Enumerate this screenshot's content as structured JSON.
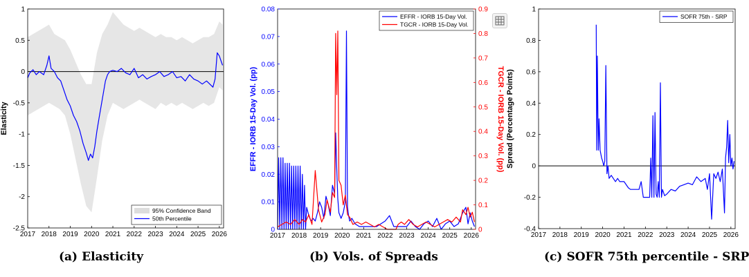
{
  "captions": [
    {
      "label": "(a)",
      "text": "Elasticity"
    },
    {
      "label": "(b)",
      "text": "Vols. of Spreads"
    },
    {
      "label": "(c)",
      "text": "SOFR 75th percentile - SRP"
    }
  ],
  "chart_data": [
    {
      "type": "line",
      "title": "",
      "xlabel": "",
      "ylabel": "Elasticity",
      "xlim": [
        2017,
        2026.2
      ],
      "ylim": [
        -2.5,
        1
      ],
      "xticks": [
        2017,
        2018,
        2019,
        2020,
        2021,
        2022,
        2023,
        2024,
        2025,
        2026
      ],
      "yticks": [
        -2.5,
        -2,
        -1.5,
        -1,
        -0.5,
        0,
        0.5,
        1
      ],
      "ytick_labels": [
        "-2.5",
        "-2",
        "-1.5",
        "-1",
        "-0.5",
        "0",
        "0.5",
        "1"
      ],
      "legend_position": "bottom-right",
      "band": {
        "name": "95% Confidence Band",
        "color": "#e6e6e6",
        "x": [
          2017.0,
          2017.25,
          2017.5,
          2017.75,
          2018.0,
          2018.25,
          2018.5,
          2018.75,
          2019.0,
          2019.25,
          2019.5,
          2019.75,
          2020.0,
          2020.25,
          2020.5,
          2020.75,
          2021.0,
          2021.25,
          2021.5,
          2021.75,
          2022.0,
          2022.25,
          2022.5,
          2022.75,
          2023.0,
          2023.25,
          2023.5,
          2023.75,
          2024.0,
          2024.25,
          2024.5,
          2024.75,
          2025.0,
          2025.25,
          2025.5,
          2025.75,
          2026.0,
          2026.15
        ],
        "upper": [
          0.55,
          0.6,
          0.65,
          0.7,
          0.75,
          0.6,
          0.55,
          0.5,
          0.35,
          0.15,
          -0.05,
          -0.2,
          -0.2,
          0.3,
          0.6,
          0.75,
          0.95,
          0.85,
          0.75,
          0.7,
          0.65,
          0.7,
          0.65,
          0.6,
          0.55,
          0.6,
          0.55,
          0.55,
          0.5,
          0.55,
          0.5,
          0.45,
          0.5,
          0.55,
          0.55,
          0.6,
          0.8,
          0.75
        ],
        "lower": [
          -0.7,
          -0.65,
          -0.6,
          -0.55,
          -0.5,
          -0.55,
          -0.6,
          -0.7,
          -1.0,
          -1.4,
          -1.8,
          -2.15,
          -2.25,
          -1.7,
          -1.1,
          -0.7,
          -0.5,
          -0.55,
          -0.6,
          -0.55,
          -0.5,
          -0.45,
          -0.5,
          -0.55,
          -0.6,
          -0.5,
          -0.55,
          -0.5,
          -0.55,
          -0.5,
          -0.55,
          -0.6,
          -0.55,
          -0.5,
          -0.55,
          -0.5,
          -0.25,
          -0.3
        ]
      },
      "series": [
        {
          "name": "50th Percentile",
          "color": "#0000ff",
          "x": [
            2017.0,
            2017.1,
            2017.25,
            2017.4,
            2017.55,
            2017.75,
            2017.9,
            2018.0,
            2018.1,
            2018.25,
            2018.4,
            2018.55,
            2018.7,
            2018.85,
            2019.0,
            2019.15,
            2019.3,
            2019.45,
            2019.6,
            2019.75,
            2019.85,
            2019.95,
            2020.05,
            2020.15,
            2020.25,
            2020.35,
            2020.45,
            2020.55,
            2020.65,
            2020.75,
            2020.85,
            2021.0,
            2021.2,
            2021.4,
            2021.6,
            2021.8,
            2022.0,
            2022.2,
            2022.4,
            2022.6,
            2022.8,
            2023.0,
            2023.2,
            2023.4,
            2023.6,
            2023.8,
            2024.0,
            2024.2,
            2024.4,
            2024.6,
            2024.8,
            2025.0,
            2025.2,
            2025.4,
            2025.55,
            2025.7,
            2025.8,
            2025.9,
            2026.0,
            2026.15
          ],
          "values": [
            -0.1,
            -0.02,
            0.03,
            -0.05,
            0.0,
            -0.05,
            0.1,
            0.25,
            0.05,
            0.0,
            -0.1,
            -0.15,
            -0.3,
            -0.45,
            -0.55,
            -0.7,
            -0.8,
            -0.95,
            -1.15,
            -1.3,
            -1.42,
            -1.32,
            -1.38,
            -1.2,
            -0.95,
            -0.75,
            -0.55,
            -0.35,
            -0.15,
            -0.05,
            0.0,
            0.02,
            0.0,
            0.05,
            -0.02,
            -0.05,
            0.05,
            -0.1,
            -0.05,
            -0.12,
            -0.08,
            -0.05,
            0.0,
            -0.08,
            -0.05,
            0.0,
            -0.1,
            -0.08,
            -0.15,
            -0.05,
            -0.12,
            -0.15,
            -0.2,
            -0.15,
            -0.2,
            -0.25,
            -0.12,
            0.3,
            0.25,
            0.1
          ]
        }
      ],
      "hline": 0
    },
    {
      "type": "line",
      "title": "",
      "xlabel": "",
      "ylabel": "EFFR - IORB 15-Day Vol. (pp)",
      "ylabel_right": "TGCR - IORB 15-Day Vol. (pp)",
      "xlim": [
        2017,
        2026.2
      ],
      "ylim": [
        0,
        0.08
      ],
      "ylim_right": [
        0,
        0.9
      ],
      "xticks": [
        2017,
        2018,
        2019,
        2020,
        2021,
        2022,
        2023,
        2024,
        2025,
        2026
      ],
      "yticks": [
        0,
        0.01,
        0.02,
        0.03,
        0.04,
        0.05,
        0.06,
        0.07,
        0.08
      ],
      "ytick_labels": [
        "0",
        "0.01",
        "0.02",
        "0.03",
        "0.04",
        "0.05",
        "0.06",
        "0.07",
        "0.08"
      ],
      "yticks_right": [
        0,
        0.1,
        0.2,
        0.3,
        0.4,
        0.5,
        0.6,
        0.7,
        0.8,
        0.9
      ],
      "ytick_labels_right": [
        "0",
        "0.1",
        "0.2",
        "0.3",
        "0.4",
        "0.5",
        "0.6",
        "0.7",
        "0.8",
        "0.9"
      ],
      "legend_position": "top-right",
      "series": [
        {
          "name": "EFFR - IORB 15-Day Vol.",
          "color": "#0000ff",
          "axis": "left",
          "x": [
            2017.0,
            2017.05,
            2017.1,
            2017.15,
            2017.2,
            2017.25,
            2017.3,
            2017.35,
            2017.4,
            2017.45,
            2017.5,
            2017.55,
            2017.6,
            2017.65,
            2017.7,
            2017.75,
            2017.8,
            2017.85,
            2017.9,
            2017.95,
            2018.0,
            2018.05,
            2018.1,
            2018.15,
            2018.2,
            2018.25,
            2018.3,
            2018.35,
            2018.45,
            2018.55,
            2018.65,
            2018.75,
            2018.85,
            2018.95,
            2019.05,
            2019.15,
            2019.25,
            2019.35,
            2019.45,
            2019.55,
            2019.65,
            2019.7,
            2019.75,
            2019.8,
            2019.85,
            2019.95,
            2020.05,
            2020.15,
            2020.2,
            2020.25,
            2020.3,
            2020.35,
            2020.45,
            2020.6,
            2020.8,
            2021.0,
            2021.2,
            2021.4,
            2021.6,
            2021.8,
            2022.0,
            2022.2,
            2022.4,
            2022.6,
            2022.8,
            2023.0,
            2023.2,
            2023.4,
            2023.6,
            2023.8,
            2024.0,
            2024.2,
            2024.4,
            2024.6,
            2024.8,
            2025.0,
            2025.2,
            2025.4,
            2025.6,
            2025.75,
            2025.85,
            2025.95,
            2026.05,
            2026.15
          ],
          "values": [
            0,
            0.026,
            0,
            0.026,
            0,
            0.026,
            0,
            0.024,
            0,
            0.024,
            0,
            0.024,
            0,
            0.023,
            0,
            0.023,
            0,
            0.023,
            0,
            0.023,
            0,
            0.023,
            0,
            0.02,
            0,
            0.016,
            0,
            0.008,
            0.005,
            0.003,
            0.004,
            0.003,
            0.006,
            0.01,
            0.008,
            0.004,
            0.012,
            0.009,
            0.005,
            0.016,
            0.013,
            0.035,
            0.022,
            0.011,
            0.006,
            0.004,
            0.006,
            0.01,
            0.072,
            0.008,
            0.005,
            0.003,
            0.004,
            0.002,
            0.001,
            0.001,
            0.001,
            0.001,
            0.001,
            0.002,
            0.003,
            0.005,
            0.001,
            0.001,
            0.001,
            0.001,
            0.003,
            0.001,
            0.0,
            0.002,
            0.003,
            0.001,
            0.004,
            0.0,
            0.002,
            0.003,
            0.001,
            0.002,
            0.006,
            0.008,
            0.002,
            0.006,
            0.003,
            0.001
          ]
        },
        {
          "name": "TGCR - IORB 15-Day Vol.",
          "color": "#ff0000",
          "axis": "right",
          "x": [
            2017.0,
            2017.2,
            2017.4,
            2017.6,
            2017.8,
            2018.0,
            2018.15,
            2018.3,
            2018.45,
            2018.6,
            2018.75,
            2018.9,
            2019.05,
            2019.2,
            2019.3,
            2019.45,
            2019.55,
            2019.65,
            2019.7,
            2019.75,
            2019.8,
            2019.85,
            2019.95,
            2020.05,
            2020.15,
            2020.25,
            2020.35,
            2020.5,
            2020.7,
            2020.9,
            2021.1,
            2021.3,
            2021.5,
            2021.7,
            2021.9,
            2022.1,
            2022.3,
            2022.5,
            2022.6,
            2022.75,
            2022.9,
            2023.1,
            2023.3,
            2023.5,
            2023.7,
            2023.9,
            2024.1,
            2024.3,
            2024.5,
            2024.7,
            2024.9,
            2025.1,
            2025.3,
            2025.5,
            2025.6,
            2025.75,
            2025.85,
            2025.95,
            2026.05,
            2026.15
          ],
          "values": [
            0.01,
            0.02,
            0.03,
            0.02,
            0.04,
            0.02,
            0.04,
            0.03,
            0.06,
            0.02,
            0.24,
            0.08,
            0.03,
            0.06,
            0.12,
            0.07,
            0.15,
            0.13,
            0.8,
            0.55,
            0.81,
            0.2,
            0.18,
            0.1,
            0.14,
            0.06,
            0.05,
            0.02,
            0.03,
            0.02,
            0.03,
            0.02,
            0.01,
            0.02,
            0.01,
            0.0,
            0.0,
            0.0,
            0.02,
            0.03,
            0.02,
            0.04,
            0.02,
            0.01,
            0.02,
            0.03,
            0.02,
            0.01,
            0.02,
            0.03,
            0.04,
            0.03,
            0.05,
            0.03,
            0.08,
            0.06,
            0.09,
            0.05,
            0.07,
            0.03
          ]
        }
      ]
    },
    {
      "type": "line",
      "title": "",
      "xlabel": "",
      "ylabel": "Spread (Percentage Points)",
      "xlim": [
        2017,
        2026.2
      ],
      "ylim": [
        -0.4,
        1
      ],
      "xticks": [
        2017,
        2018,
        2019,
        2020,
        2021,
        2022,
        2023,
        2024,
        2025,
        2026
      ],
      "yticks": [
        -0.4,
        -0.2,
        0,
        0.2,
        0.4,
        0.6,
        0.8,
        1
      ],
      "ytick_labels": [
        "-0.4",
        "-0.2",
        "0",
        "0.2",
        "0.4",
        "0.6",
        "0.8",
        "1"
      ],
      "legend_position": "top-right",
      "hline": 0,
      "series": [
        {
          "name": "SOFR 75th - SRP",
          "color": "#0000ff",
          "x": [
            2019.7,
            2019.72,
            2019.75,
            2019.78,
            2019.8,
            2019.83,
            2019.88,
            2019.95,
            2020.0,
            2020.05,
            2020.1,
            2020.15,
            2020.2,
            2020.25,
            2020.3,
            2020.4,
            2020.5,
            2020.6,
            2020.7,
            2020.8,
            2020.9,
            2021.0,
            2021.1,
            2021.2,
            2021.3,
            2021.4,
            2021.5,
            2021.6,
            2021.7,
            2021.8,
            2021.9,
            2022.0,
            2022.1,
            2022.2,
            2022.25,
            2022.3,
            2022.35,
            2022.4,
            2022.45,
            2022.5,
            2022.55,
            2022.6,
            2022.65,
            2022.7,
            2022.75,
            2022.8,
            2022.9,
            2023.0,
            2023.2,
            2023.4,
            2023.6,
            2023.8,
            2024.0,
            2024.2,
            2024.4,
            2024.6,
            2024.8,
            2024.9,
            2025.0,
            2025.1,
            2025.2,
            2025.3,
            2025.4,
            2025.5,
            2025.6,
            2025.7,
            2025.75,
            2025.8,
            2025.85,
            2025.9,
            2025.95,
            2026.0,
            2026.05,
            2026.1,
            2026.15
          ],
          "values": [
            0.9,
            0.1,
            0.7,
            0.3,
            0.1,
            0.3,
            0.1,
            0.05,
            0.03,
            0.0,
            0.03,
            0.64,
            -0.05,
            0.0,
            -0.08,
            -0.06,
            -0.08,
            -0.1,
            -0.08,
            -0.1,
            -0.1,
            -0.1,
            -0.12,
            -0.14,
            -0.15,
            -0.15,
            -0.15,
            -0.15,
            -0.15,
            -0.1,
            -0.2,
            -0.2,
            -0.2,
            -0.2,
            0.05,
            -0.2,
            0.32,
            -0.2,
            0.34,
            -0.18,
            -0.2,
            -0.1,
            -0.2,
            0.53,
            -0.2,
            -0.15,
            -0.19,
            -0.18,
            -0.15,
            -0.16,
            -0.13,
            -0.12,
            -0.11,
            -0.12,
            -0.07,
            -0.1,
            -0.08,
            -0.15,
            -0.05,
            -0.34,
            -0.05,
            -0.08,
            -0.04,
            -0.1,
            -0.02,
            -0.3,
            0.05,
            0.12,
            0.29,
            0.02,
            0.2,
            0.0,
            0.05,
            -0.02,
            0.03
          ]
        }
      ]
    }
  ]
}
